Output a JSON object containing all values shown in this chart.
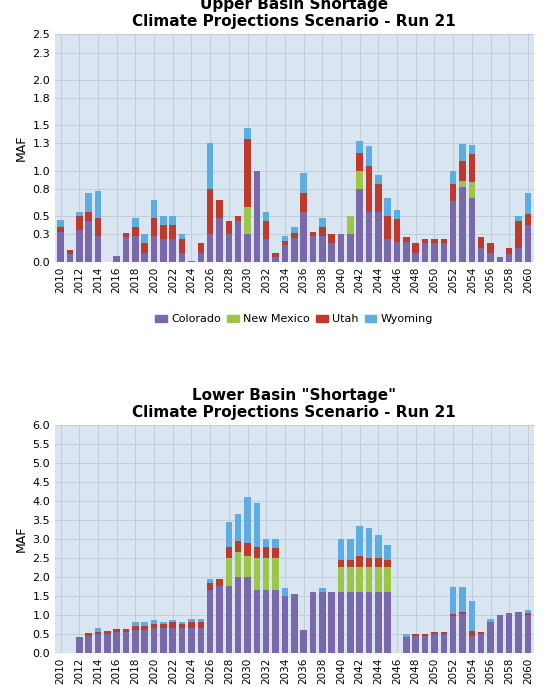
{
  "upper_title1": "Upper Basin Shortage",
  "upper_title2": "Climate Projections Scenario - Run 21",
  "lower_title1": "Lower Basin \"Shortage\"",
  "lower_title2": "Climate Projections Scenario - Run 21",
  "years": [
    2010,
    2011,
    2012,
    2013,
    2014,
    2015,
    2016,
    2017,
    2018,
    2019,
    2020,
    2021,
    2022,
    2023,
    2024,
    2025,
    2026,
    2027,
    2028,
    2029,
    2030,
    2031,
    2032,
    2033,
    2034,
    2035,
    2036,
    2037,
    2038,
    2039,
    2040,
    2041,
    2042,
    2043,
    2044,
    2045,
    2046,
    2047,
    2048,
    2049,
    2050,
    2051,
    2052,
    2053,
    2054,
    2055,
    2056,
    2057,
    2058,
    2059,
    2060
  ],
  "upper": {
    "colorado": [
      0.33,
      0.08,
      0.35,
      0.45,
      0.28,
      0.0,
      0.06,
      0.27,
      0.28,
      0.1,
      0.28,
      0.25,
      0.25,
      0.1,
      0.01,
      0.1,
      0.3,
      0.48,
      0.3,
      0.45,
      0.3,
      1.0,
      0.25,
      0.05,
      0.18,
      0.26,
      0.55,
      0.28,
      0.28,
      0.2,
      0.3,
      0.3,
      0.8,
      0.55,
      0.55,
      0.25,
      0.22,
      0.22,
      0.1,
      0.2,
      0.2,
      0.2,
      0.67,
      0.82,
      0.7,
      0.15,
      0.1,
      0.05,
      0.08,
      0.15,
      0.4
    ],
    "new_mexico": [
      0.0,
      0.0,
      0.0,
      0.0,
      0.0,
      0.0,
      0.0,
      0.0,
      0.0,
      0.0,
      0.0,
      0.0,
      0.0,
      0.0,
      0.0,
      0.0,
      0.0,
      0.0,
      0.0,
      0.0,
      0.3,
      0.0,
      0.0,
      0.0,
      0.0,
      0.0,
      0.0,
      0.0,
      0.0,
      0.0,
      0.0,
      0.2,
      0.2,
      0.0,
      0.0,
      0.0,
      0.0,
      0.0,
      0.0,
      0.0,
      0.0,
      0.0,
      0.0,
      0.07,
      0.18,
      0.0,
      0.0,
      0.0,
      0.0,
      0.0,
      0.0
    ],
    "utah": [
      0.05,
      0.05,
      0.15,
      0.1,
      0.2,
      0.0,
      0.0,
      0.05,
      0.1,
      0.1,
      0.2,
      0.15,
      0.15,
      0.15,
      0.0,
      0.1,
      0.5,
      0.2,
      0.15,
      0.05,
      0.75,
      0.0,
      0.2,
      0.05,
      0.05,
      0.05,
      0.2,
      0.05,
      0.1,
      0.1,
      0.0,
      0.0,
      0.2,
      0.5,
      0.3,
      0.25,
      0.25,
      0.05,
      0.1,
      0.05,
      0.05,
      0.05,
      0.18,
      0.22,
      0.3,
      0.12,
      0.1,
      0.0,
      0.07,
      0.3,
      0.12
    ],
    "wyoming": [
      0.08,
      0.0,
      0.05,
      0.2,
      0.3,
      0.0,
      0.0,
      0.0,
      0.1,
      0.1,
      0.2,
      0.1,
      0.1,
      0.05,
      0.0,
      0.0,
      0.5,
      0.0,
      0.0,
      0.0,
      0.12,
      0.0,
      0.1,
      0.0,
      0.05,
      0.07,
      0.22,
      0.0,
      0.1,
      0.0,
      0.0,
      0.0,
      0.13,
      0.22,
      0.1,
      0.2,
      0.1,
      0.0,
      0.0,
      0.0,
      0.0,
      0.0,
      0.15,
      0.18,
      0.1,
      0.0,
      0.0,
      0.0,
      0.0,
      0.05,
      0.23
    ]
  },
  "lower": {
    "arizona": [
      0.0,
      0.0,
      0.4,
      0.45,
      0.5,
      0.5,
      0.55,
      0.55,
      0.6,
      0.6,
      0.65,
      0.65,
      0.65,
      0.65,
      0.65,
      0.65,
      1.65,
      1.75,
      1.75,
      2.0,
      2.0,
      1.65,
      1.65,
      1.65,
      1.5,
      1.55,
      0.6,
      1.6,
      1.6,
      1.6,
      1.6,
      1.6,
      1.6,
      1.6,
      1.6,
      1.6,
      0.0,
      0.4,
      0.45,
      0.45,
      0.5,
      0.5,
      0.98,
      1.02,
      0.45,
      0.5,
      0.8,
      1.0,
      1.05,
      1.08,
      1.0
    ],
    "california": [
      0.0,
      0.0,
      0.0,
      0.0,
      0.0,
      0.0,
      0.0,
      0.0,
      0.0,
      0.0,
      0.0,
      0.0,
      0.0,
      0.0,
      0.0,
      0.0,
      0.0,
      0.0,
      0.75,
      0.65,
      0.55,
      0.85,
      0.85,
      0.85,
      0.0,
      0.0,
      0.0,
      0.0,
      0.0,
      0.0,
      0.65,
      0.65,
      0.65,
      0.65,
      0.65,
      0.65,
      0.0,
      0.0,
      0.0,
      0.0,
      0.0,
      0.0,
      0.0,
      0.0,
      0.0,
      0.0,
      0.0,
      0.0,
      0.0,
      0.0,
      0.0
    ],
    "nevada": [
      0.0,
      0.0,
      0.0,
      0.08,
      0.05,
      0.07,
      0.08,
      0.08,
      0.1,
      0.1,
      0.1,
      0.1,
      0.15,
      0.1,
      0.15,
      0.15,
      0.2,
      0.2,
      0.3,
      0.3,
      0.35,
      0.3,
      0.3,
      0.25,
      0.0,
      0.0,
      0.0,
      0.0,
      0.0,
      0.0,
      0.2,
      0.2,
      0.3,
      0.25,
      0.25,
      0.2,
      0.0,
      0.0,
      0.05,
      0.05,
      0.05,
      0.05,
      0.05,
      0.05,
      0.12,
      0.05,
      0.0,
      0.0,
      0.0,
      0.0,
      0.05
    ],
    "mexico": [
      0.0,
      0.0,
      0.0,
      0.0,
      0.1,
      0.0,
      0.0,
      0.0,
      0.1,
      0.1,
      0.1,
      0.05,
      0.05,
      0.05,
      0.1,
      0.1,
      0.1,
      0.0,
      0.65,
      0.7,
      1.2,
      1.15,
      0.2,
      0.25,
      0.2,
      0.0,
      0.0,
      0.0,
      0.1,
      0.0,
      0.55,
      0.55,
      0.8,
      0.8,
      0.6,
      0.4,
      0.0,
      0.1,
      0.0,
      0.0,
      0.0,
      0.0,
      0.7,
      0.65,
      0.8,
      0.0,
      0.1,
      0.0,
      0.0,
      0.0,
      0.07
    ]
  },
  "upper_ylim": [
    0,
    2.5
  ],
  "upper_yticks": [
    0.0,
    0.3,
    0.5,
    0.8,
    1.0,
    1.3,
    1.5,
    1.8,
    2.0,
    2.3,
    2.5
  ],
  "lower_ylim": [
    0,
    6.0
  ],
  "lower_yticks": [
    0.0,
    0.5,
    1.0,
    1.5,
    2.0,
    2.5,
    3.0,
    3.5,
    4.0,
    4.5,
    5.0,
    5.5,
    6.0
  ],
  "colors": {
    "colorado": "#7B68AA",
    "new_mexico": "#9DC54A",
    "utah": "#C0392B",
    "wyoming": "#5DADE2",
    "arizona": "#7B68AA",
    "california": "#9DC54A",
    "nevada": "#C0392B",
    "mexico": "#5DADE2"
  },
  "bar_width": 0.7,
  "ylabel": "MAF",
  "grid_color": "#C0CEDC",
  "bg_color": "#D9E6F2"
}
